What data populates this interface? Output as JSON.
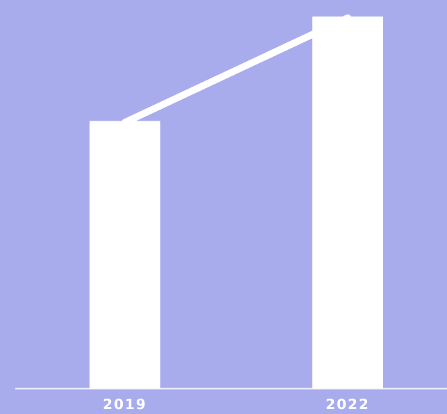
{
  "chart_data": {
    "type": "bar",
    "categories": [
      "2019",
      "2022"
    ],
    "values": [
      394,
      548
    ],
    "ylim": [
      0,
      560
    ],
    "trend_line": true,
    "grid": false,
    "legend": "none",
    "title": "",
    "xlabel": "",
    "ylabel": ""
  },
  "colors": {
    "background": "#a9acec",
    "bar": "#ffffff",
    "trend_line": "#ffffff",
    "baseline": "#ffffff",
    "tick_label": "#ffffff"
  }
}
